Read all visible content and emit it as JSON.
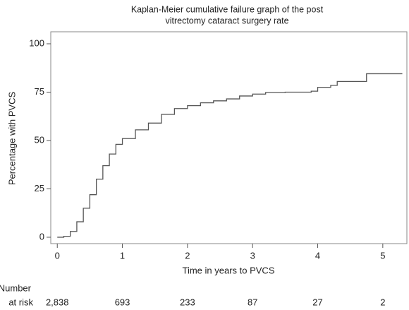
{
  "chart_data": {
    "type": "line",
    "title": [
      "Kaplan-Meier cumulative failure graph of the post",
      "vitrectomy cataract surgery rate"
    ],
    "x_label": "Time in years to PVCS",
    "y_label": "Percentage with PVCS",
    "step": true,
    "x": [
      0.0,
      0.1,
      0.2,
      0.3,
      0.4,
      0.5,
      0.6,
      0.7,
      0.8,
      0.9,
      1.0,
      1.2,
      1.4,
      1.6,
      1.8,
      2.0,
      2.2,
      2.4,
      2.6,
      2.8,
      3.0,
      3.2,
      3.5,
      3.9,
      4.0,
      4.2,
      4.3,
      4.75,
      5.3
    ],
    "series": [
      {
        "color": "#555555",
        "values": [
          0,
          0.5,
          3,
          8,
          15,
          22,
          30,
          37,
          43,
          48,
          51,
          55.5,
          59,
          63.5,
          66.5,
          68,
          69.5,
          70.5,
          71.5,
          73,
          74,
          74.8,
          75,
          75.5,
          77.5,
          78.5,
          80.5,
          84.5,
          84.5
        ]
      }
    ],
    "xlim": [
      -0.1,
      5.37
    ],
    "xticks": [
      0,
      1,
      2,
      3,
      4,
      5
    ],
    "ylim": [
      -3.3,
      106.2
    ],
    "yticks": [
      0,
      25,
      50,
      75,
      100
    ],
    "risk_table": {
      "label": [
        "Number",
        "at risk"
      ],
      "values": [
        "2,838",
        "693",
        "233",
        "87",
        "27",
        "2"
      ]
    }
  }
}
